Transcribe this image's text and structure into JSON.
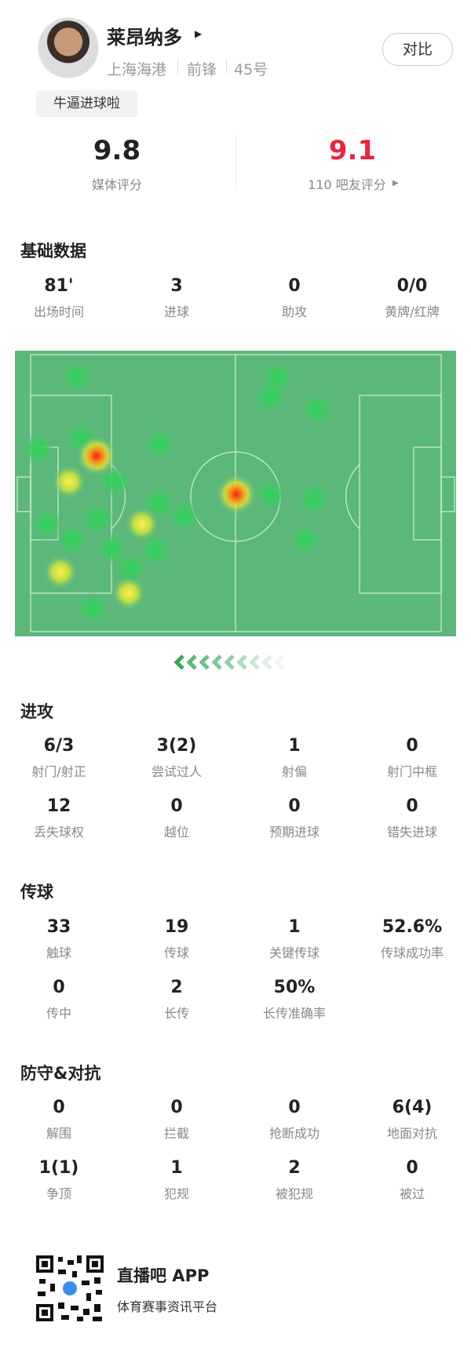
{
  "header": {
    "name": "莱昂纳多",
    "team": "上海海港",
    "position": "前锋",
    "number": "45号",
    "tag": "牛逼进球啦",
    "compare": "对比",
    "media_rating": {
      "value": "9.8",
      "label": "媒体评分"
    },
    "fan_rating": {
      "value": "9.1",
      "label": "110 吧友评分"
    }
  },
  "sections": [
    {
      "title": "基础数据",
      "stats": [
        {
          "value": "81'",
          "label": "出场时间"
        },
        {
          "value": "3",
          "label": "进球"
        },
        {
          "value": "0",
          "label": "助攻"
        },
        {
          "value": "0/0",
          "label": "黄牌/红牌"
        }
      ]
    },
    {
      "title": "进攻",
      "stats": [
        {
          "value": "6/3",
          "label": "射门/射正"
        },
        {
          "value": "3(2)",
          "label": "尝试过人"
        },
        {
          "value": "1",
          "label": "射偏"
        },
        {
          "value": "0",
          "label": "射门中框"
        },
        {
          "value": "12",
          "label": "丢失球权"
        },
        {
          "value": "0",
          "label": "越位"
        },
        {
          "value": "0",
          "label": "预期进球"
        },
        {
          "value": "0",
          "label": "错失进球"
        }
      ]
    },
    {
      "title": "传球",
      "stats": [
        {
          "value": "33",
          "label": "触球"
        },
        {
          "value": "19",
          "label": "传球"
        },
        {
          "value": "1",
          "label": "关键传球"
        },
        {
          "value": "52.6%",
          "label": "传球成功率"
        },
        {
          "value": "0",
          "label": "传中"
        },
        {
          "value": "2",
          "label": "长传"
        },
        {
          "value": "50%",
          "label": "长传准确率"
        }
      ]
    },
    {
      "title": "防守&对抗",
      "stats": [
        {
          "value": "0",
          "label": "解围"
        },
        {
          "value": "0",
          "label": "拦截"
        },
        {
          "value": "0",
          "label": "抢断成功"
        },
        {
          "value": "6(4)",
          "label": "地面对抗"
        },
        {
          "value": "1(1)",
          "label": "争顶"
        },
        {
          "value": "1",
          "label": "犯规"
        },
        {
          "value": "2",
          "label": "被犯规"
        },
        {
          "value": "0",
          "label": "被过"
        }
      ]
    }
  ],
  "footer": {
    "app": "直播吧 APP",
    "slogan": "体育赛事资讯平台"
  }
}
